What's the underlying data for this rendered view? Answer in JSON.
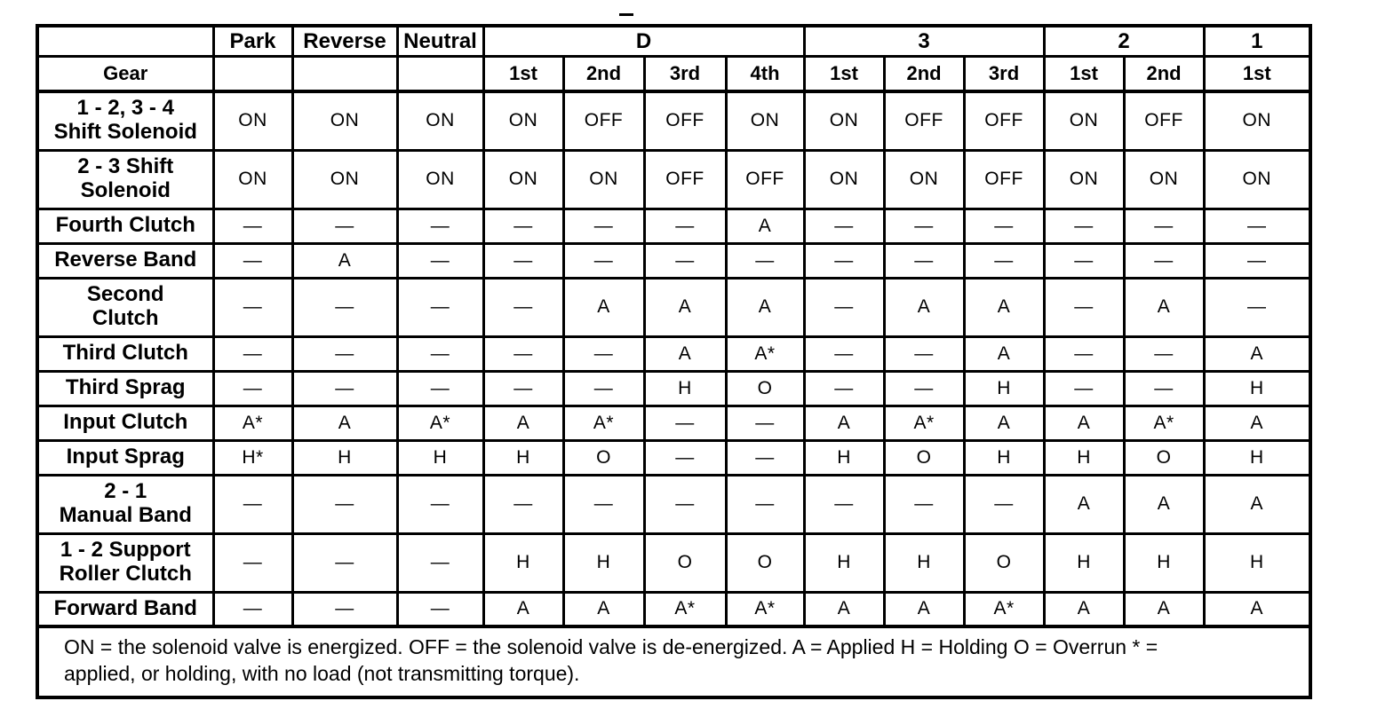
{
  "header": {
    "gear_label": "Gear",
    "sections": [
      {
        "label": "Park",
        "subcols": []
      },
      {
        "label": "Reverse",
        "subcols": []
      },
      {
        "label": "Neutral",
        "subcols": []
      },
      {
        "label": "D",
        "subcols": [
          "1st",
          "2nd",
          "3rd",
          "4th"
        ]
      },
      {
        "label": "3",
        "subcols": [
          "1st",
          "2nd",
          "3rd"
        ]
      },
      {
        "label": "2",
        "subcols": [
          "1st",
          "2nd"
        ]
      },
      {
        "label": "1",
        "subcols": [
          "1st"
        ]
      }
    ]
  },
  "rows": [
    {
      "label": "1 - 2, 3 - 4\nShift Solenoid",
      "values": [
        "ON",
        "ON",
        "ON",
        "ON",
        "OFF",
        "OFF",
        "ON",
        "ON",
        "OFF",
        "OFF",
        "ON",
        "OFF",
        "ON"
      ]
    },
    {
      "label": "2 - 3 Shift\nSolenoid",
      "values": [
        "ON",
        "ON",
        "ON",
        "ON",
        "ON",
        "OFF",
        "OFF",
        "ON",
        "ON",
        "OFF",
        "ON",
        "ON",
        "ON"
      ]
    },
    {
      "label": "Fourth Clutch",
      "values": [
        "—",
        "—",
        "—",
        "—",
        "—",
        "—",
        "A",
        "—",
        "—",
        "—",
        "—",
        "—",
        "—"
      ]
    },
    {
      "label": "Reverse Band",
      "values": [
        "—",
        "A",
        "—",
        "—",
        "—",
        "—",
        "—",
        "—",
        "—",
        "—",
        "—",
        "—",
        "—"
      ]
    },
    {
      "label": "Second\nClutch",
      "values": [
        "—",
        "—",
        "—",
        "—",
        "A",
        "A",
        "A",
        "—",
        "A",
        "A",
        "—",
        "A",
        "—"
      ]
    },
    {
      "label": "Third Clutch",
      "values": [
        "—",
        "—",
        "—",
        "—",
        "—",
        "A",
        "A*",
        "—",
        "—",
        "A",
        "—",
        "—",
        "A"
      ]
    },
    {
      "label": "Third Sprag",
      "values": [
        "—",
        "—",
        "—",
        "—",
        "—",
        "H",
        "O",
        "—",
        "—",
        "H",
        "—",
        "—",
        "H"
      ]
    },
    {
      "label": "Input Clutch",
      "values": [
        "A*",
        "A",
        "A*",
        "A",
        "A*",
        "—",
        "—",
        "A",
        "A*",
        "A",
        "A",
        "A*",
        "A"
      ]
    },
    {
      "label": "Input Sprag",
      "values": [
        "H*",
        "H",
        "H",
        "H",
        "O",
        "—",
        "—",
        "H",
        "O",
        "H",
        "H",
        "O",
        "H"
      ]
    },
    {
      "label": "2 - 1\nManual Band",
      "values": [
        "—",
        "—",
        "—",
        "—",
        "—",
        "—",
        "—",
        "—",
        "—",
        "—",
        "A",
        "A",
        "A"
      ]
    },
    {
      "label": "1 - 2 Support\nRoller Clutch",
      "values": [
        "—",
        "—",
        "—",
        "H",
        "H",
        "O",
        "O",
        "H",
        "H",
        "O",
        "H",
        "H",
        "H"
      ]
    },
    {
      "label": "Forward Band",
      "values": [
        "—",
        "—",
        "—",
        "A",
        "A",
        "A*",
        "A*",
        "A",
        "A",
        "A*",
        "A",
        "A",
        "A"
      ]
    }
  ],
  "footnote": "ON = the solenoid valve is energized. OFF = the solenoid valve is de-energized. A = Applied H = Holding O = Overrun * =\napplied, or holding, with no load (not transmitting torque)."
}
